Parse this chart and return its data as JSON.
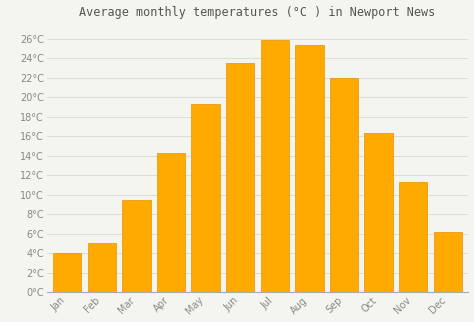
{
  "title": "Average monthly temperatures (°C ) in Newport News",
  "months": [
    "Jan",
    "Feb",
    "Mar",
    "Apr",
    "May",
    "Jun",
    "Jul",
    "Aug",
    "Sep",
    "Oct",
    "Nov",
    "Dec"
  ],
  "values": [
    4.0,
    5.0,
    9.5,
    14.3,
    19.3,
    23.5,
    25.8,
    25.3,
    22.0,
    16.3,
    11.3,
    6.2
  ],
  "bar_color": "#FFAA00",
  "bar_edge_color": "#E89000",
  "background_color": "#f5f5f0",
  "grid_color": "#d8d8d8",
  "yticks": [
    0,
    2,
    4,
    6,
    8,
    10,
    12,
    14,
    16,
    18,
    20,
    22,
    24,
    26
  ],
  "ylim": [
    0,
    27.5
  ],
  "title_fontsize": 8.5,
  "tick_fontsize": 7,
  "title_color": "#555555",
  "tick_color": "#888888",
  "bar_width": 0.82
}
